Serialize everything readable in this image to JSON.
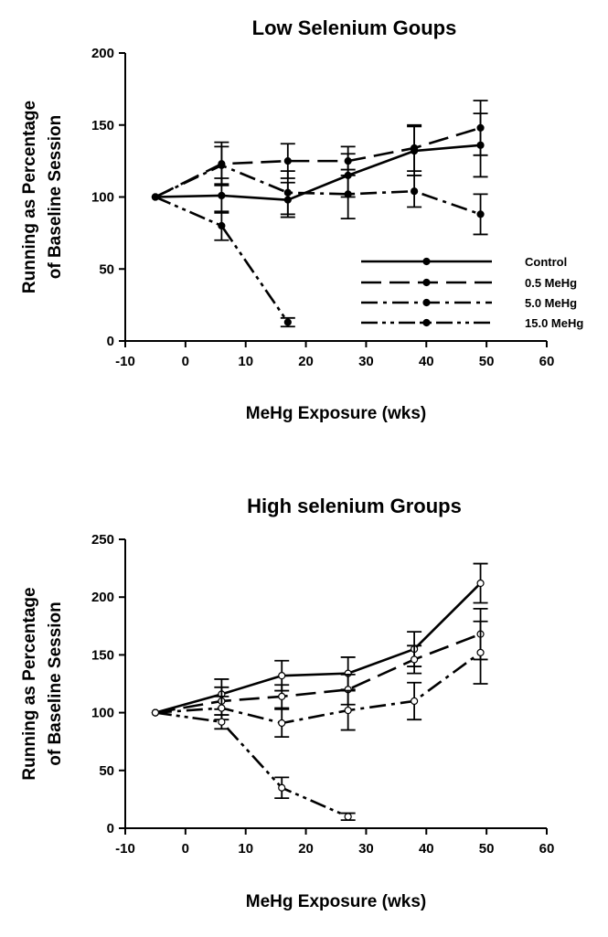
{
  "chart_data": [
    {
      "type": "line",
      "title": "Low Selenium Goups",
      "xlabel": "MeHg Exposure (wks)",
      "ylabel_lines": [
        "Running as Percentage",
        "of Baseline Session"
      ],
      "xlim": [
        -10,
        60
      ],
      "ylim": [
        0,
        200
      ],
      "xticks": [
        -10,
        0,
        10,
        20,
        30,
        40,
        50,
        60
      ],
      "yticks": [
        0,
        50,
        100,
        150,
        200
      ],
      "marker_fill": "#000000",
      "legend_position": "lower-right",
      "series": [
        {
          "name": "Control",
          "dash": "solid",
          "x": [
            -5,
            6,
            17,
            27,
            38,
            49
          ],
          "y": [
            100,
            101,
            98,
            115,
            132,
            136
          ],
          "err": [
            0,
            12,
            12,
            15,
            17,
            22
          ]
        },
        {
          "name": "0.5 MeHg",
          "dash": "long-dash",
          "x": [
            -5,
            6,
            17,
            27,
            38,
            49
          ],
          "y": [
            100,
            123,
            125,
            125,
            134,
            148
          ],
          "err": [
            0,
            15,
            12,
            10,
            16,
            19
          ]
        },
        {
          "name": "5.0 MeHg",
          "dash": "dash-dot",
          "x": [
            -5,
            6,
            17,
            27,
            38,
            49
          ],
          "y": [
            100,
            122,
            103,
            102,
            104,
            88
          ],
          "err": [
            0,
            13,
            15,
            17,
            11,
            14
          ]
        },
        {
          "name": "15.0 MeHg",
          "dash": "dash-dot-dot",
          "x": [
            -5,
            6,
            17
          ],
          "y": [
            100,
            80,
            13
          ],
          "err": [
            0,
            10,
            3
          ]
        }
      ]
    },
    {
      "type": "line",
      "title": "High selenium Groups",
      "xlabel": "MeHg Exposure (wks)",
      "ylabel_lines": [
        "Running as Percentage",
        "of Baseline Session"
      ],
      "xlim": [
        -10,
        60
      ],
      "ylim": [
        0,
        250
      ],
      "xticks": [
        -10,
        0,
        10,
        20,
        30,
        40,
        50,
        60
      ],
      "yticks": [
        0,
        50,
        100,
        150,
        200,
        250
      ],
      "marker_fill": "#ffffff",
      "series": [
        {
          "dash": "solid",
          "x": [
            -5,
            6,
            16,
            27,
            38,
            49
          ],
          "y": [
            100,
            116,
            132,
            134,
            155,
            212
          ],
          "err": [
            0,
            13,
            13,
            14,
            15,
            17
          ]
        },
        {
          "dash": "long-dash",
          "x": [
            -5,
            6,
            16,
            27,
            38,
            49
          ],
          "y": [
            100,
            110,
            114,
            120,
            146,
            168
          ],
          "err": [
            0,
            12,
            10,
            13,
            12,
            22
          ]
        },
        {
          "dash": "dash-dot",
          "x": [
            -5,
            6,
            16,
            27,
            38,
            49
          ],
          "y": [
            100,
            104,
            91,
            102,
            110,
            152
          ],
          "err": [
            0,
            10,
            12,
            17,
            16,
            27
          ]
        },
        {
          "dash": "dash-dot-dot",
          "x": [
            -5,
            6,
            16,
            27
          ],
          "y": [
            100,
            92,
            35,
            10
          ],
          "err": [
            0,
            6,
            9,
            3
          ]
        }
      ]
    }
  ]
}
